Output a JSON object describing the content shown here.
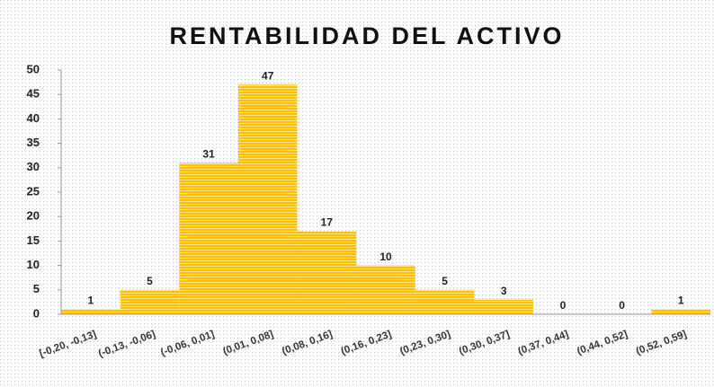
{
  "chart_data": {
    "type": "bar",
    "title": "RENTABILIDAD DEL ACTIVO",
    "categories": [
      "[-0,20, -0,13]",
      "(-0,13, -0,06]",
      "(-0,06, 0,01]",
      "(0,01, 0,08]",
      "(0,08, 0,16]",
      "(0,16, 0,23]",
      "(0,23, 0,30]",
      "(0,30, 0,37]",
      "(0,37, 0,44]",
      "(0,44, 0,52]",
      "(0,52, 0,59]"
    ],
    "values": [
      1,
      5,
      31,
      47,
      17,
      10,
      5,
      3,
      0,
      0,
      1
    ],
    "color": "#ffc000",
    "ylim": [
      0,
      50
    ],
    "yticks": [
      0,
      5,
      10,
      15,
      20,
      25,
      30,
      35,
      40,
      45,
      50
    ],
    "grid": false
  }
}
